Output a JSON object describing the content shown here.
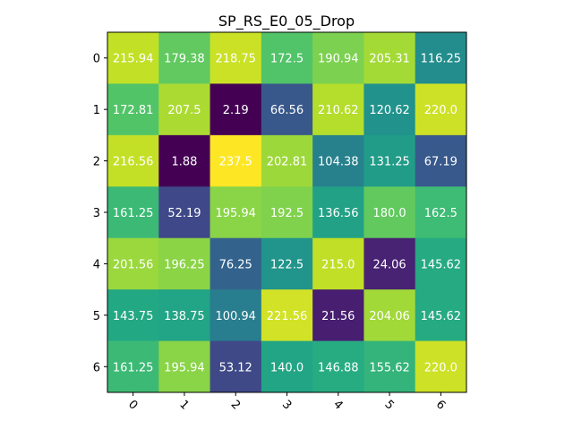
{
  "chart_data": {
    "type": "heatmap",
    "title": "SP_RS_E0_05_Drop",
    "x_ticks": [
      "0",
      "1",
      "2",
      "3",
      "4",
      "5",
      "6"
    ],
    "y_ticks": [
      "0",
      "1",
      "2",
      "3",
      "4",
      "5",
      "6"
    ],
    "values": [
      [
        215.94,
        179.38,
        218.75,
        172.5,
        190.94,
        205.31,
        116.25
      ],
      [
        172.81,
        207.5,
        2.19,
        66.56,
        210.62,
        120.62,
        220.0
      ],
      [
        216.56,
        1.88,
        237.5,
        202.81,
        104.38,
        131.25,
        67.19
      ],
      [
        161.25,
        52.19,
        195.94,
        192.5,
        136.56,
        180.0,
        162.5
      ],
      [
        201.56,
        196.25,
        76.25,
        122.5,
        215.0,
        24.06,
        145.62
      ],
      [
        143.75,
        138.75,
        100.94,
        221.56,
        21.56,
        204.06,
        145.62
      ],
      [
        161.25,
        195.94,
        53.12,
        140.0,
        146.88,
        155.62,
        220.0
      ]
    ],
    "labels": [
      [
        "215.94",
        "179.38",
        "218.75",
        "172.5",
        "190.94",
        "205.31",
        "116.25"
      ],
      [
        "172.81",
        "207.5",
        "2.19",
        "66.56",
        "210.62",
        "120.62",
        "220.0"
      ],
      [
        "216.56",
        "1.88",
        "237.5",
        "202.81",
        "104.38",
        "131.25",
        "67.19"
      ],
      [
        "161.25",
        "52.19",
        "195.94",
        "192.5",
        "136.56",
        "180.0",
        "162.5"
      ],
      [
        "201.56",
        "196.25",
        "76.25",
        "122.5",
        "215.0",
        "24.06",
        "145.62"
      ],
      [
        "143.75",
        "138.75",
        "100.94",
        "221.56",
        "21.56",
        "204.06",
        "145.62"
      ],
      [
        "161.25",
        "195.94",
        "53.12",
        "140.0",
        "146.88",
        "155.62",
        "220.0"
      ]
    ],
    "colormap": "viridis",
    "x_tick_rotation": "45deg",
    "cell_text_color": "#ffffff"
  }
}
